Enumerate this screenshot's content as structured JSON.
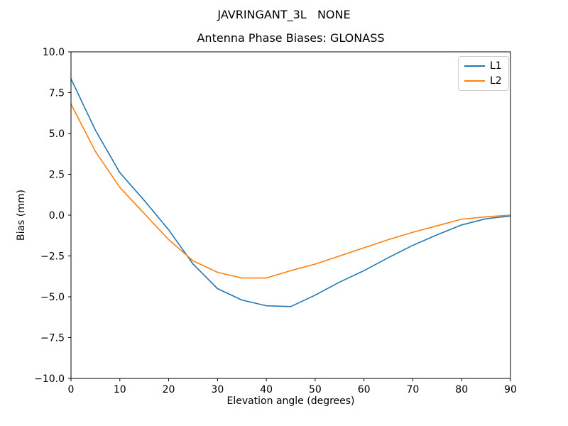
{
  "figure": {
    "suptitle": "JAVRINGANT_3L   NONE",
    "background": "#ffffff"
  },
  "chart_data": {
    "type": "line",
    "title": "Antenna Phase Biases: GLONASS",
    "xlabel": "Elevation angle (degrees)",
    "ylabel": "Bias (mm)",
    "xlim": [
      0,
      90
    ],
    "ylim": [
      -10,
      10
    ],
    "grid": false,
    "x": [
      0,
      5,
      10,
      15,
      20,
      25,
      30,
      35,
      40,
      45,
      50,
      55,
      60,
      65,
      70,
      75,
      80,
      85,
      90
    ],
    "series": [
      {
        "name": "L1",
        "color": "#1f77b4",
        "values": [
          8.35,
          5.2,
          2.6,
          0.9,
          -0.9,
          -3.0,
          -4.5,
          -5.2,
          -5.55,
          -5.6,
          -4.9,
          -4.1,
          -3.4,
          -2.6,
          -1.85,
          -1.2,
          -0.6,
          -0.22,
          -0.05
        ]
      },
      {
        "name": "L2",
        "color": "#ff7f0e",
        "values": [
          6.8,
          3.9,
          1.7,
          0.1,
          -1.5,
          -2.8,
          -3.5,
          -3.85,
          -3.85,
          -3.4,
          -3.0,
          -2.5,
          -2.0,
          -1.5,
          -1.05,
          -0.65,
          -0.25,
          -0.1,
          0.0
        ]
      }
    ],
    "xticks": {
      "values": [
        0,
        10,
        20,
        30,
        40,
        50,
        60,
        70,
        80,
        90
      ],
      "labels": [
        "0",
        "10",
        "20",
        "30",
        "40",
        "50",
        "60",
        "70",
        "80",
        "90"
      ]
    },
    "yticks": {
      "values": [
        10,
        7.5,
        5,
        2.5,
        0,
        -2.5,
        -5,
        -7.5,
        -10
      ],
      "labels": [
        "10.0",
        "7.5",
        "5.0",
        "2.5",
        "0.0",
        "−2.5",
        "−5.0",
        "−7.5",
        "−10.0"
      ]
    },
    "legend": {
      "position": "upper right",
      "entries": [
        "L1",
        "L2"
      ]
    }
  }
}
